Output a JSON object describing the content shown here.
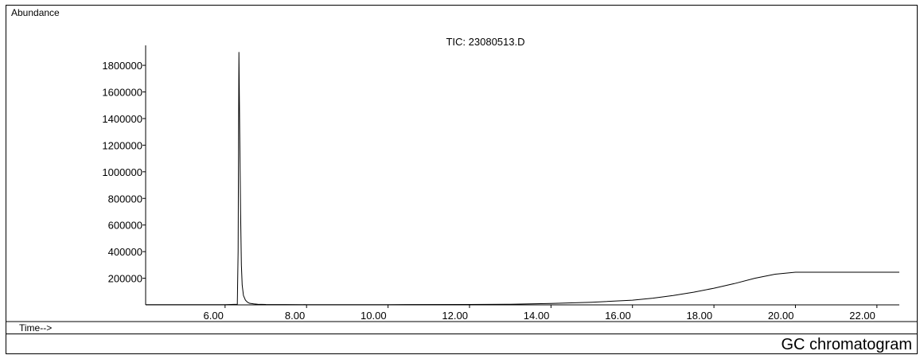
{
  "chart_data": {
    "type": "line",
    "title": "TIC: 23080513.D",
    "ylabel": "Abundance",
    "xlabel": "Time-->",
    "xlim": [
      4.05,
      22.55
    ],
    "ylim": [
      0,
      1950000
    ],
    "x_ticks": [
      6.0,
      8.0,
      10.0,
      12.0,
      14.0,
      16.0,
      18.0,
      20.0,
      22.0
    ],
    "x_tick_labels": [
      "6.00",
      "8.00",
      "10.00",
      "12.00",
      "14.00",
      "16.00",
      "18.00",
      "20.00",
      "22.00"
    ],
    "y_ticks": [
      200000,
      400000,
      600000,
      800000,
      1000000,
      1200000,
      1400000,
      1600000,
      1800000
    ],
    "y_tick_labels": [
      "200000",
      "400000",
      "600000",
      "800000",
      "1000000",
      "1200000",
      "1400000",
      "1600000",
      "1800000"
    ],
    "grid": false,
    "series": [
      {
        "x": [
          4.05,
          5.0,
          6.0,
          6.3,
          6.32,
          6.34,
          6.36,
          6.38,
          6.4,
          6.42,
          6.45,
          6.5,
          6.55,
          6.6,
          6.7,
          6.8,
          7.0,
          8.0,
          10.0,
          12.0,
          13.0,
          14.0,
          15.0,
          16.0,
          16.5,
          17.0,
          17.5,
          18.0,
          18.5,
          19.0,
          19.5,
          20.0,
          20.5,
          21.0,
          22.0,
          22.55
        ],
        "y": [
          2000,
          2000,
          2000,
          5000,
          400000,
          1900000,
          1300000,
          700000,
          300000,
          150000,
          70000,
          35000,
          20000,
          12000,
          7000,
          5000,
          3000,
          2000,
          2000,
          3000,
          5000,
          10000,
          20000,
          35000,
          50000,
          70000,
          95000,
          125000,
          160000,
          200000,
          230000,
          245000,
          245000,
          245000,
          245000,
          245000
        ]
      }
    ]
  },
  "caption": "GC chromatogram"
}
